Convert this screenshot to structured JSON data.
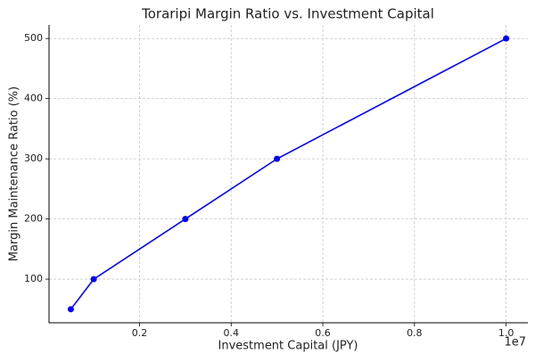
{
  "chart_data": {
    "type": "line",
    "title": "Toraripi Margin Ratio vs. Investment Capital",
    "x_label": "Investment Capital (JPY)",
    "y_label": "Margin Maintenance Ratio (%)",
    "x_offset_label": "1e7",
    "x": [
      500000,
      1000000,
      3000000,
      5000000,
      10000000
    ],
    "series": [
      {
        "color": "#0000ff",
        "values": [
          50,
          100,
          200,
          300,
          500
        ]
      }
    ],
    "xlim": [
      25000,
      10475000
    ],
    "ylim": [
      27.5,
      522.5
    ],
    "xticks": [
      {
        "value": 2000000,
        "label": "0.2"
      },
      {
        "value": 4000000,
        "label": "0.4"
      },
      {
        "value": 6000000,
        "label": "0.6"
      },
      {
        "value": 8000000,
        "label": "0.8"
      },
      {
        "value": 10000000,
        "label": "1.0"
      }
    ],
    "yticks": [
      100,
      200,
      300,
      400,
      500
    ],
    "grid": true
  }
}
